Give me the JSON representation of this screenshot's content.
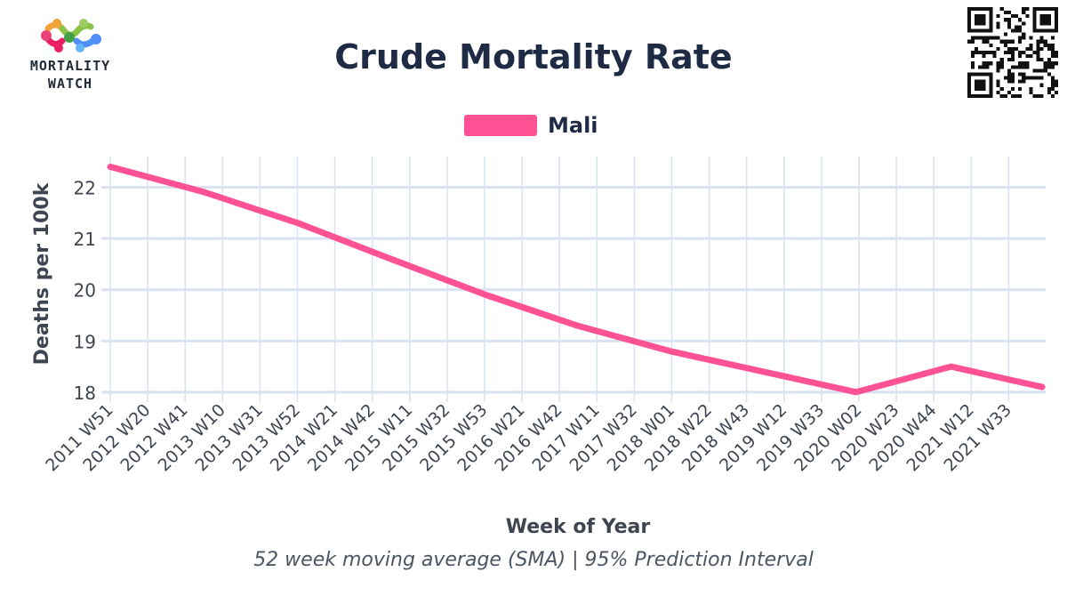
{
  "logo": {
    "line1": "MORTALITY",
    "line2": "WATCH"
  },
  "colors": {
    "series": "#ff5294",
    "grid": "#d9e1f2",
    "text": "#1f2a44",
    "tick_text": "#3f4550"
  },
  "caption": "52 week moving average (SMA) | 95% Prediction Interval",
  "chart_data": {
    "type": "line",
    "title": "Crude Mortality Rate",
    "xlabel": "Week of Year",
    "ylabel": "Deaths per 100k",
    "ylim": [
      17.98,
      22.6
    ],
    "yticks": [
      18,
      19,
      20,
      21,
      22
    ],
    "grid": true,
    "legend": "top-center",
    "x_ticks": [
      "2011 W51",
      "2012 W20",
      "2012 W41",
      "2013 W10",
      "2013 W31",
      "2013 W52",
      "2014 W21",
      "2014 W42",
      "2015 W11",
      "2015 W32",
      "2015 W53",
      "2016 W21",
      "2016 W42",
      "2017 W11",
      "2017 W32",
      "2018 W01",
      "2018 W22",
      "2018 W43",
      "2019 W12",
      "2019 W33",
      "2020 W02",
      "2020 W23",
      "2020 W44",
      "2021 W12",
      "2021 W33"
    ],
    "series": [
      {
        "name": "Mali",
        "x": [
          "2011 W51",
          "2012 W52",
          "2013 W52",
          "2014 W52",
          "2015 W53",
          "2016 W52",
          "2017 W52",
          "2018 W52",
          "2019 W52",
          "2020 W53",
          "2021 W52"
        ],
        "values": [
          22.4,
          21.9,
          21.3,
          20.6,
          19.9,
          19.3,
          18.8,
          18.4,
          18.0,
          18.5,
          18.1
        ]
      }
    ]
  }
}
